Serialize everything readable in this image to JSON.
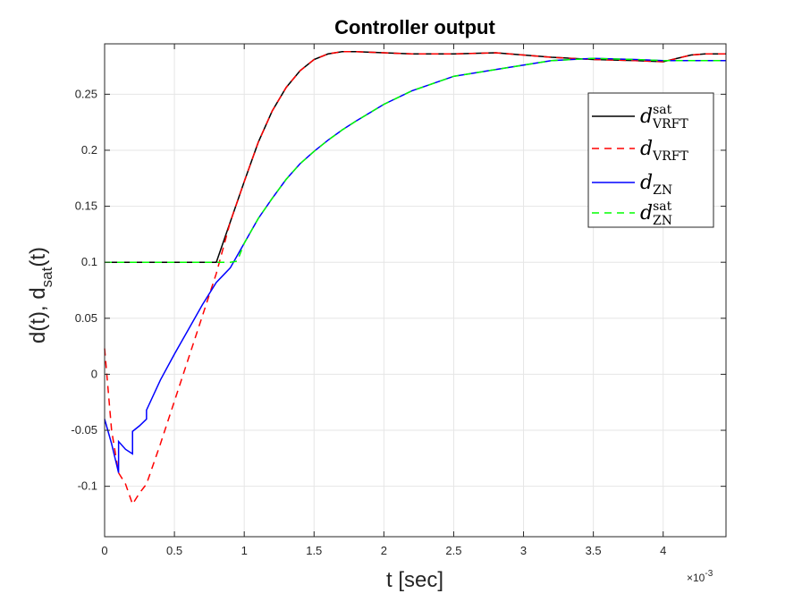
{
  "chart_data": {
    "type": "line",
    "title": "Controller output",
    "xlabel": "t [sec]",
    "ylabel_main": "d(t), d",
    "ylabel_sub": "sat",
    "ylabel_tail": "(t)",
    "x_exponent_base": "×10",
    "x_exponent_power": "-3",
    "xlim": [
      0,
      0.00445
    ],
    "ylim": [
      -0.145,
      0.295
    ],
    "grid": true,
    "legend_position": "top-right",
    "x_ticks": [
      0,
      0.0005,
      0.001,
      0.0015,
      0.002,
      0.0025,
      0.003,
      0.0035,
      0.004
    ],
    "x_tick_labels": [
      "0",
      "0.5",
      "1",
      "1.5",
      "2",
      "2.5",
      "3",
      "3.5",
      "4"
    ],
    "y_ticks": [
      -0.1,
      -0.05,
      0,
      0.05,
      0.1,
      0.15,
      0.2,
      0.25
    ],
    "y_tick_labels": [
      "-0.1",
      "-0.05",
      "0",
      "0.05",
      "0.1",
      "0.15",
      "0.2",
      "0.25"
    ],
    "series": [
      {
        "name": "d_VRFT^sat",
        "legend_main": "d",
        "legend_sub": "VRFT",
        "legend_sup": "sat",
        "color": "#000000",
        "dash": "solid",
        "x": [
          0,
          0.0001,
          0.0002,
          0.0003,
          0.0004,
          0.0005,
          0.0006,
          0.0007,
          0.0008,
          0.0009,
          0.001,
          0.0011,
          0.0012,
          0.0013,
          0.0014,
          0.0015,
          0.0016,
          0.0017,
          0.0018,
          0.002,
          0.0022,
          0.0025,
          0.0028,
          0.003,
          0.0032,
          0.0035,
          0.0038,
          0.004,
          0.0041,
          0.0042,
          0.0043,
          0.00445
        ],
        "y": [
          0.1,
          0.1,
          0.1,
          0.1,
          0.1,
          0.1,
          0.1,
          0.1,
          0.1,
          0.136,
          0.172,
          0.207,
          0.235,
          0.256,
          0.271,
          0.281,
          0.286,
          0.288,
          0.288,
          0.287,
          0.286,
          0.286,
          0.287,
          0.285,
          0.283,
          0.281,
          0.28,
          0.279,
          0.282,
          0.285,
          0.286,
          0.286
        ]
      },
      {
        "name": "d_VRFT",
        "legend_main": "d",
        "legend_sub": "VRFT",
        "legend_sup": "",
        "color": "#ff0000",
        "dash": "8,6",
        "x": [
          0,
          5e-05,
          0.0001,
          0.00015,
          0.0002,
          0.00025,
          0.0003,
          0.0004,
          0.0005,
          0.0006,
          0.0007,
          0.0008,
          0.0009,
          0.001,
          0.0011,
          0.0012,
          0.0013,
          0.0014,
          0.0015,
          0.0016,
          0.0017,
          0.0018,
          0.002,
          0.0022,
          0.0025,
          0.0028,
          0.003,
          0.0032,
          0.0035,
          0.0038,
          0.004,
          0.0041,
          0.0042,
          0.0043,
          0.00445
        ],
        "y": [
          0.023,
          -0.05,
          -0.088,
          -0.098,
          -0.116,
          -0.106,
          -0.098,
          -0.062,
          -0.024,
          0.014,
          0.052,
          0.09,
          0.136,
          0.172,
          0.207,
          0.235,
          0.256,
          0.271,
          0.281,
          0.286,
          0.288,
          0.288,
          0.287,
          0.286,
          0.286,
          0.287,
          0.285,
          0.283,
          0.281,
          0.28,
          0.279,
          0.282,
          0.285,
          0.286,
          0.286
        ]
      },
      {
        "name": "d_ZN",
        "legend_main": "d",
        "legend_sub": "ZN",
        "legend_sup": "",
        "color": "#0000ff",
        "dash": "solid",
        "x": [
          0,
          5e-05,
          0.0001,
          0.0001,
          0.00015,
          0.0002,
          0.0002,
          0.00025,
          0.0003,
          0.0003,
          0.0004,
          0.0005,
          0.0006,
          0.0007,
          0.0008,
          0.0009,
          0.001,
          0.0011,
          0.0012,
          0.0013,
          0.0014,
          0.0015,
          0.0016,
          0.0017,
          0.0018,
          0.002,
          0.0022,
          0.0025,
          0.0028,
          0.003,
          0.0032,
          0.0035,
          0.0038,
          0.004,
          0.0042,
          0.00445
        ],
        "y": [
          -0.04,
          -0.062,
          -0.088,
          -0.06,
          -0.067,
          -0.071,
          -0.051,
          -0.046,
          -0.04,
          -0.032,
          -0.005,
          0.018,
          0.04,
          0.062,
          0.082,
          0.095,
          0.117,
          0.139,
          0.157,
          0.174,
          0.188,
          0.199,
          0.209,
          0.218,
          0.226,
          0.241,
          0.253,
          0.266,
          0.272,
          0.276,
          0.28,
          0.282,
          0.281,
          0.28,
          0.28,
          0.28
        ]
      },
      {
        "name": "d_ZN^sat",
        "legend_main": "d",
        "legend_sub": "ZN",
        "legend_sup": "sat",
        "color": "#00ff00",
        "dash": "8,6",
        "x": [
          0,
          0.0001,
          0.0002,
          0.0003,
          0.0004,
          0.0005,
          0.0006,
          0.0007,
          0.0008,
          0.0009,
          0.00095,
          0.001,
          0.0011,
          0.0012,
          0.0013,
          0.0014,
          0.0015,
          0.0016,
          0.0017,
          0.0018,
          0.002,
          0.0022,
          0.0025,
          0.0028,
          0.003,
          0.0032,
          0.0035,
          0.0038,
          0.004,
          0.0042,
          0.00445
        ],
        "y": [
          0.1,
          0.1,
          0.1,
          0.1,
          0.1,
          0.1,
          0.1,
          0.1,
          0.1,
          0.1,
          0.101,
          0.117,
          0.139,
          0.157,
          0.174,
          0.188,
          0.199,
          0.209,
          0.218,
          0.226,
          0.241,
          0.253,
          0.266,
          0.272,
          0.276,
          0.28,
          0.282,
          0.281,
          0.28,
          0.28,
          0.28
        ]
      }
    ]
  }
}
